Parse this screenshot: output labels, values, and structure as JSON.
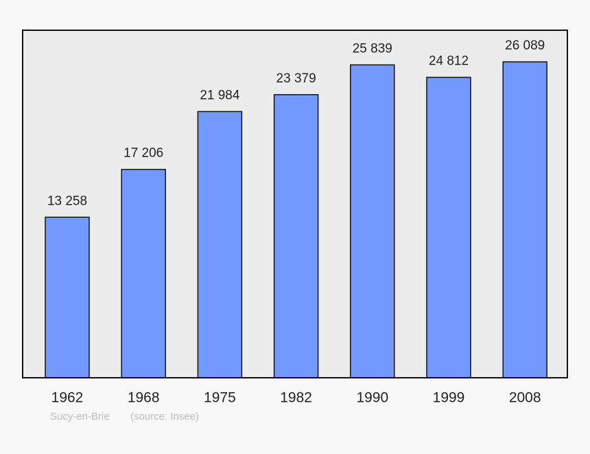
{
  "chart_data": {
    "type": "bar",
    "categories": [
      "1962",
      "1968",
      "1975",
      "1982",
      "1990",
      "1999",
      "2008"
    ],
    "values": [
      13258,
      17206,
      21984,
      23379,
      25839,
      24812,
      26089
    ],
    "value_labels": [
      "13 258",
      "17 206",
      "21 984",
      "23 379",
      "25 839",
      "24 812",
      "26 089"
    ],
    "color": "#7399ff",
    "ylim": [
      0,
      28700
    ],
    "place": "Sucy-en-Brie",
    "source": "(source: Insee)"
  }
}
